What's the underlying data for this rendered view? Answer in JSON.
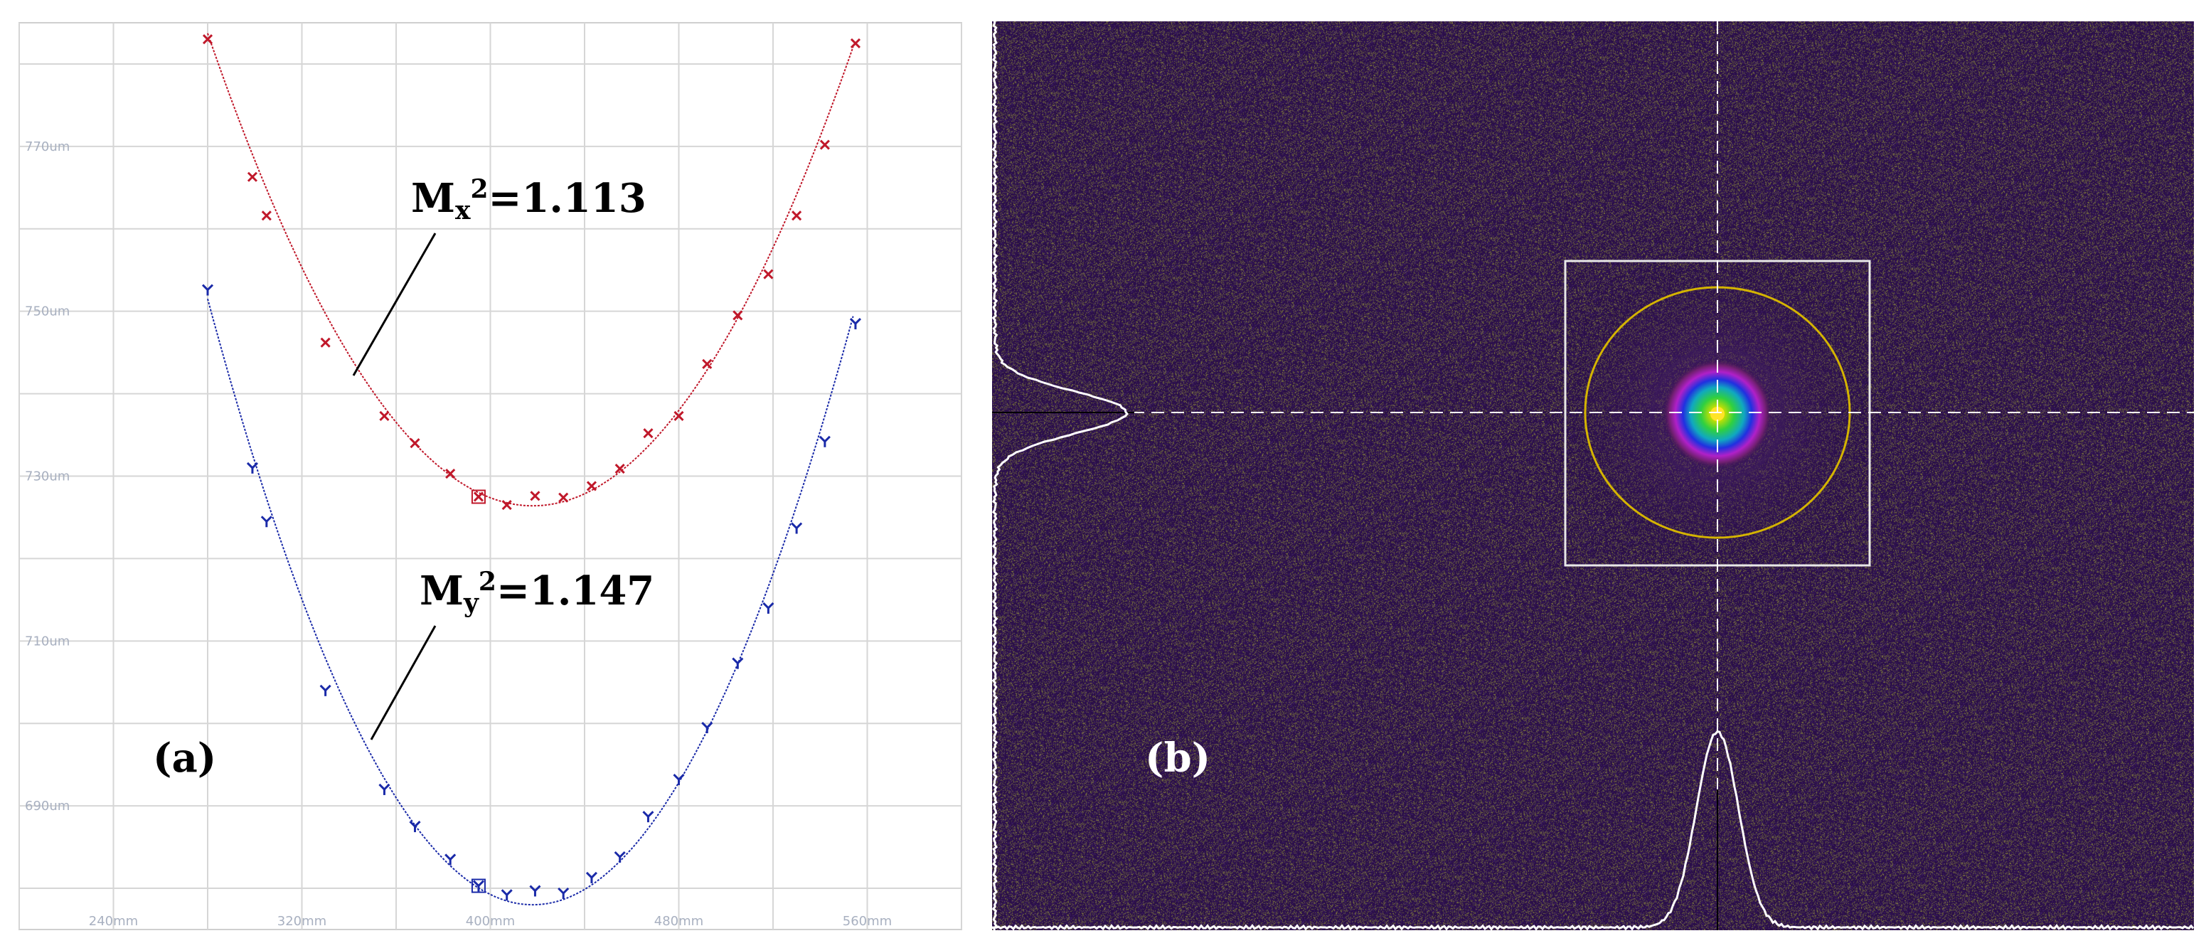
{
  "chart_data": [
    {
      "type": "scatter",
      "panel_label": "(a)",
      "xlim": [
        200,
        600
      ],
      "ylim": [
        675,
        785
      ],
      "x_ticks": [
        "240mm",
        "320mm",
        "400mm",
        "480mm",
        "560mm"
      ],
      "y_ticks": [
        "690um",
        "710um",
        "730um",
        "750um",
        "770um"
      ],
      "grid": true,
      "series": [
        {
          "color": "#c0182a",
          "marker": "x",
          "x": [
            280,
            299,
            305,
            330,
            355,
            368,
            383,
            395,
            407,
            419,
            431,
            443,
            455,
            467,
            480,
            492,
            505,
            518,
            530,
            542,
            555
          ],
          "y": [
            783,
            766.3,
            761.6,
            746.2,
            737.3,
            734,
            730.3,
            727.5,
            726.5,
            727.6,
            727.4,
            728.8,
            730.9,
            735.2,
            737.3,
            743.6,
            749.5,
            754.5,
            761.6,
            770.2,
            782.5
          ],
          "fit": {
            "waist_um": 726.4,
            "waist_pos_mm": 418,
            "curvature": 0.00301
          }
        },
        {
          "color": "#1a2aa8",
          "marker": "y",
          "x": [
            280,
            299,
            305,
            330,
            355,
            368,
            383,
            395,
            407,
            419,
            431,
            443,
            455,
            467,
            480,
            492,
            505,
            518,
            530,
            542,
            555
          ],
          "y": [
            752.6,
            731,
            724.5,
            704,
            692,
            687.5,
            683.5,
            680.3,
            679.2,
            679.7,
            679.4,
            681.3,
            683.8,
            688.7,
            693.2,
            699.5,
            707.3,
            714,
            723.7,
            734.2,
            748.5
          ],
          "fit": {
            "waist_um": 678,
            "waist_pos_mm": 418,
            "curvature": 0.00386
          }
        }
      ],
      "annotations": [
        {
          "base": "M",
          "sub": "x",
          "sup": "2",
          "value": "=1.113"
        },
        {
          "base": "M",
          "sub": "y",
          "sup": "2",
          "value": "=1.147"
        }
      ]
    },
    {
      "type": "heatmap",
      "panel_label": "(b)",
      "colors": {
        "background": "#2a0f48",
        "noise": "#6a6a3a",
        "roi_box": "#e8e8e8",
        "ellipse": "#d4b400",
        "profile": "#ffffff",
        "crosshair_dash": "#ffffff",
        "crosshair_solid": "#000000"
      }
    }
  ]
}
